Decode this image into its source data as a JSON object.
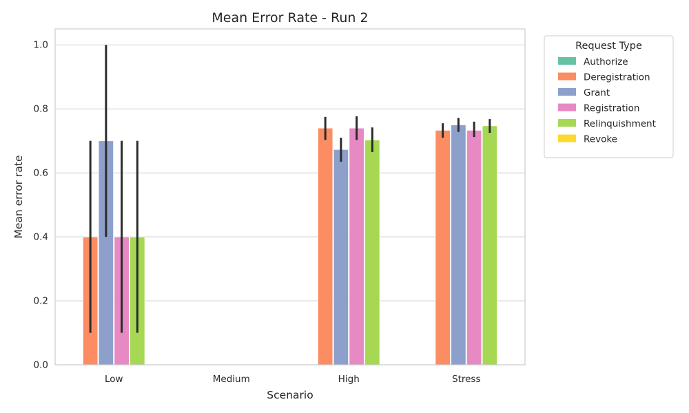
{
  "chart_data": {
    "type": "bar",
    "title": "Mean Error Rate - Run 2",
    "xlabel": "Scenario",
    "ylabel": "Mean error rate",
    "ylim": [
      0,
      1.05
    ],
    "yticks": [
      "0.0",
      "0.2",
      "0.4",
      "0.6",
      "0.8",
      "1.0"
    ],
    "grid": "horizontal",
    "categories": [
      "Low",
      "Medium",
      "High",
      "Stress"
    ],
    "legend": {
      "title": "Request Type",
      "placement": "outside-right-top"
    },
    "series": [
      {
        "name": "Authorize",
        "color": "#66c2a5",
        "values": [
          null,
          null,
          null,
          null
        ],
        "err_low": [
          null,
          null,
          null,
          null
        ],
        "err_high": [
          null,
          null,
          null,
          null
        ]
      },
      {
        "name": "Deregistration",
        "color": "#fc8d62",
        "values": [
          0.4,
          null,
          0.74,
          0.733
        ],
        "err_low": [
          0.1,
          null,
          0.703,
          0.71
        ],
        "err_high": [
          0.7,
          null,
          0.775,
          0.755
        ]
      },
      {
        "name": "Grant",
        "color": "#8da0cb",
        "values": [
          0.7,
          null,
          0.673,
          0.75
        ],
        "err_low": [
          0.4,
          null,
          0.635,
          0.728
        ],
        "err_high": [
          1.0,
          null,
          0.71,
          0.772
        ]
      },
      {
        "name": "Registration",
        "color": "#e78ac3",
        "values": [
          0.4,
          null,
          0.74,
          0.733
        ],
        "err_low": [
          0.1,
          null,
          0.703,
          0.712
        ],
        "err_high": [
          0.7,
          null,
          0.777,
          0.76
        ]
      },
      {
        "name": "Relinquishment",
        "color": "#a6d854",
        "values": [
          0.4,
          null,
          0.703,
          0.747
        ],
        "err_low": [
          0.1,
          null,
          0.665,
          0.725
        ],
        "err_high": [
          0.7,
          null,
          0.742,
          0.768
        ]
      },
      {
        "name": "Revoke",
        "color": "#ffd92f",
        "values": [
          null,
          null,
          null,
          null
        ],
        "err_low": [
          null,
          null,
          null,
          null
        ],
        "err_high": [
          null,
          null,
          null,
          null
        ]
      }
    ]
  }
}
